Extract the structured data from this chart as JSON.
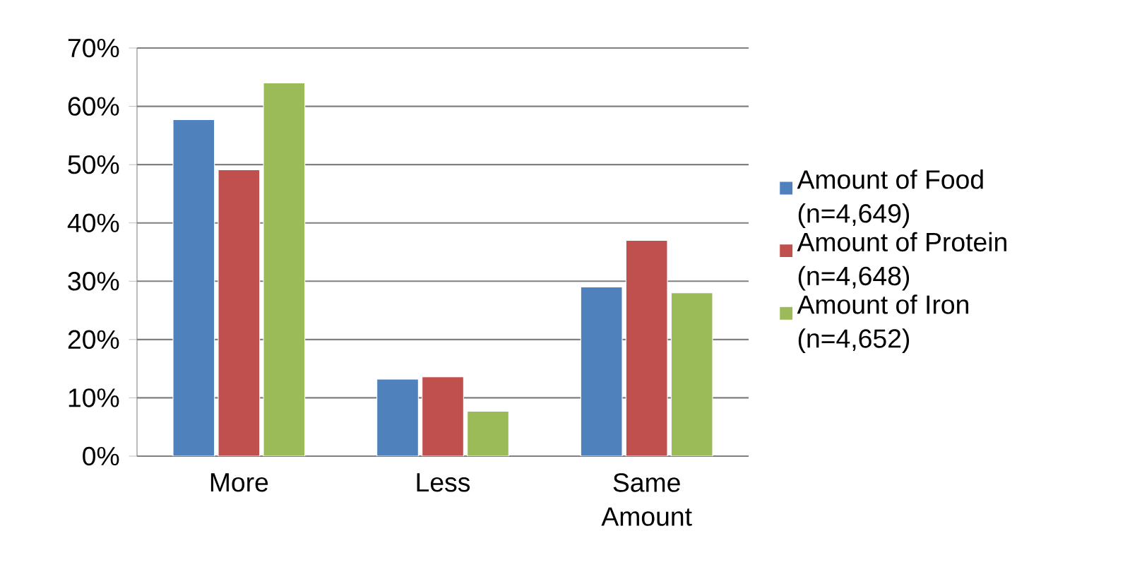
{
  "chart_data": {
    "type": "bar",
    "categories": [
      "More",
      "Less",
      "Same Amount"
    ],
    "series": [
      {
        "name": "Amount of Food (n=4,649)",
        "color": "#4f81bd",
        "values": [
          57.7,
          13.2,
          29.0
        ]
      },
      {
        "name": "Amount of Protein (n=4,648)",
        "color": "#c0504d",
        "values": [
          49.1,
          13.6,
          37.0
        ]
      },
      {
        "name": "Amount of Iron (n=4,652)",
        "color": "#9bbb59",
        "values": [
          64.0,
          7.7,
          28.0
        ]
      }
    ],
    "ylim": [
      0,
      70
    ],
    "yticks": [
      {
        "value": 0,
        "label": "0%"
      },
      {
        "value": 10,
        "label": "10%"
      },
      {
        "value": 20,
        "label": "20%"
      },
      {
        "value": 30,
        "label": "30%"
      },
      {
        "value": 40,
        "label": "40%"
      },
      {
        "value": 50,
        "label": "50%"
      },
      {
        "value": 60,
        "label": "60%"
      },
      {
        "value": 70,
        "label": "70%"
      }
    ],
    "grid": "y",
    "legend": "right"
  }
}
